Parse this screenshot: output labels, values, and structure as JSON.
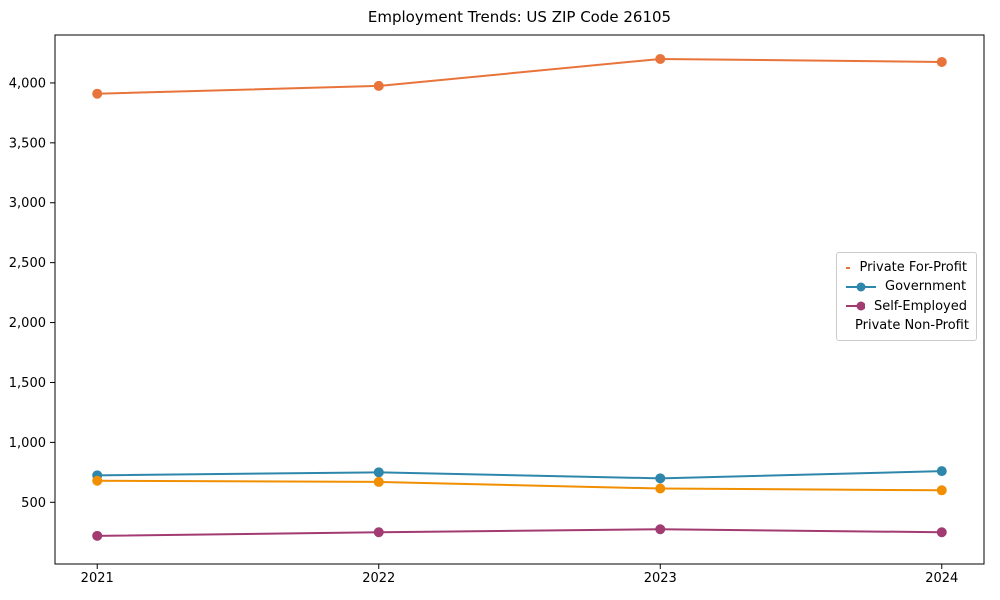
{
  "title": "Employment Trends: US ZIP Code 26105",
  "chart_data": {
    "type": "line",
    "title": "Employment Trends: US ZIP Code 26105",
    "x": [
      2021,
      2022,
      2023,
      2024
    ],
    "categories": [
      "2021",
      "2022",
      "2023",
      "2024"
    ],
    "series": [
      {
        "name": "Private For-Profit",
        "color": "#E8743B",
        "values": [
          3910,
          3975,
          4200,
          4175
        ]
      },
      {
        "name": "Government",
        "color": "#2E86AB",
        "values": [
          725,
          750,
          700,
          760
        ]
      },
      {
        "name": "Self-Employed",
        "color": "#A23B72",
        "values": [
          220,
          250,
          275,
          250
        ]
      },
      {
        "name": "Private Non-Profit",
        "color": "#F18F01",
        "values": [
          680,
          670,
          615,
          600
        ]
      }
    ],
    "yticks": [
      500,
      1000,
      1500,
      2000,
      2500,
      3000,
      3500,
      4000
    ],
    "ytick_labels": [
      "500",
      "1,000",
      "1,500",
      "2,000",
      "2,500",
      "3,000",
      "3,500",
      "4,000"
    ],
    "ylim": [
      -15,
      4400
    ],
    "xlim": [
      2020.85,
      2024.15
    ],
    "grid": false,
    "legend_position": "center right",
    "marker": "o",
    "xlabel": "",
    "ylabel": ""
  }
}
